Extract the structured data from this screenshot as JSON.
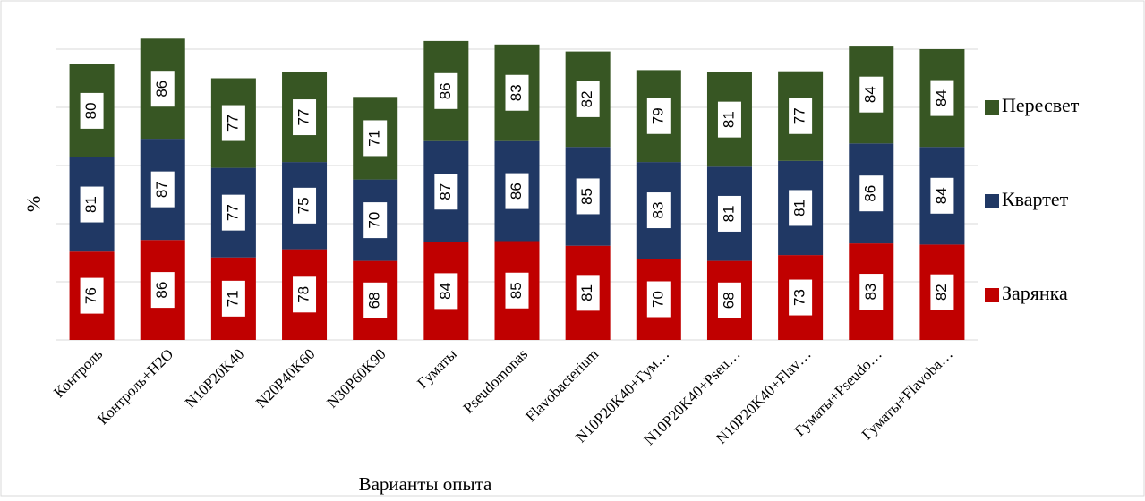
{
  "chart_data": {
    "type": "stacked_bar",
    "y_label": "%",
    "x_label": "Варианты опыта",
    "categories": [
      "Контроль",
      "Контроль+H2O",
      "N10P20K40",
      "N20P40K60",
      "N30P60K90",
      "Гуматы",
      "Pseudomonas",
      "Flavobacterium",
      "N10P20K40+Гум…",
      "N10P20K40+Pseu…",
      "N10P20K40+Flav…",
      "Гуматы+Pseudo…",
      "Гуматы+Flavoba…"
    ],
    "series": [
      {
        "name": "Зарянка",
        "color": "#c00000",
        "values": [
          76,
          86,
          71,
          78,
          68,
          84,
          85,
          81,
          70,
          68,
          73,
          83,
          82
        ]
      },
      {
        "name": "Квартет",
        "color": "#203864",
        "values": [
          81,
          87,
          77,
          75,
          70,
          87,
          86,
          85,
          83,
          81,
          81,
          86,
          84
        ]
      },
      {
        "name": "Пересвет",
        "color": "#375623",
        "values": [
          80,
          86,
          77,
          77,
          71,
          86,
          83,
          82,
          79,
          81,
          77,
          84,
          84
        ]
      }
    ],
    "ylim": [
      0,
      280
    ],
    "yticks": [
      0,
      50,
      100,
      150,
      200,
      250
    ],
    "grid": true,
    "legend": "right"
  }
}
